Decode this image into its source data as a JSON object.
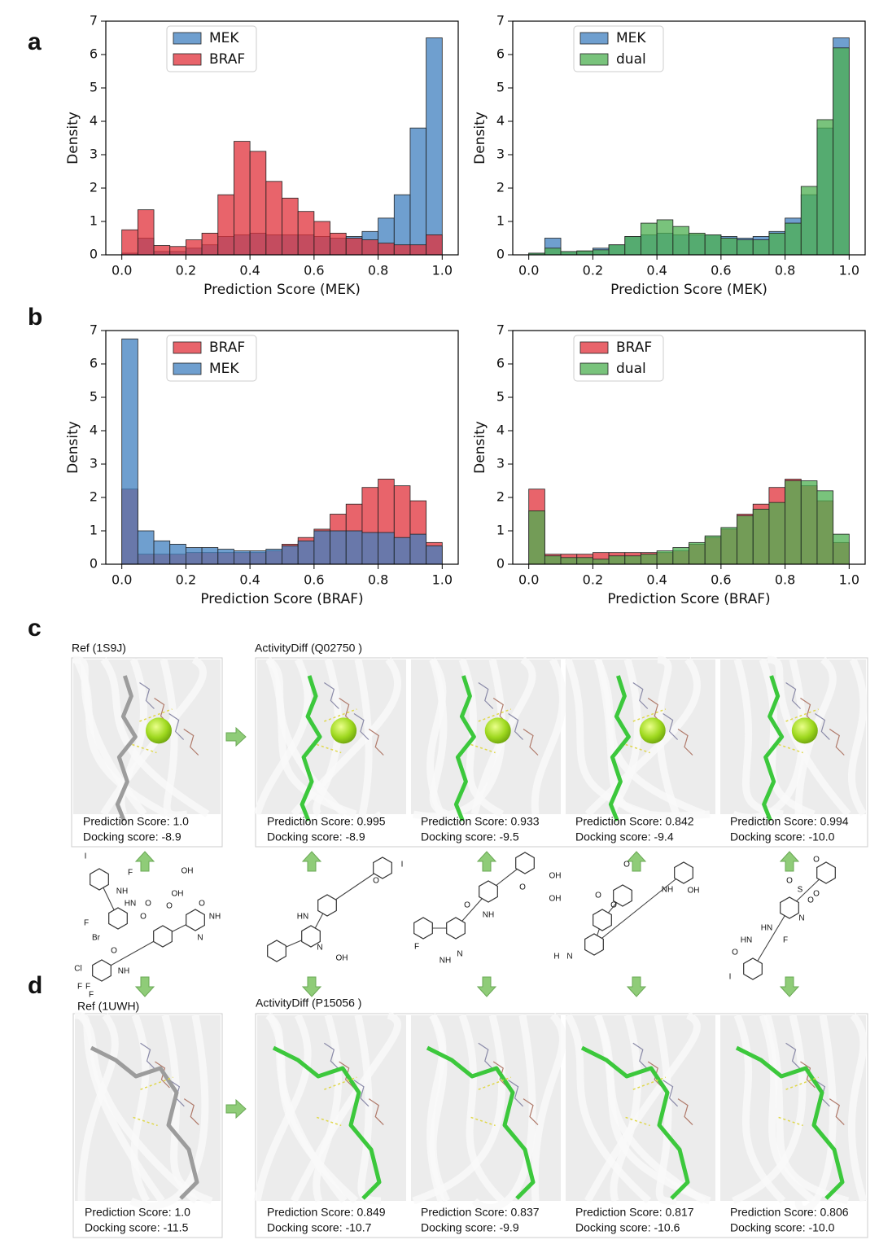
{
  "chart_data": [
    {
      "type": "histogram",
      "xlabel": "Prediction Score (MEK)",
      "ylabel": "Density",
      "bins": [
        0,
        0.05,
        0.1,
        0.15,
        0.2,
        0.25,
        0.3,
        0.35,
        0.4,
        0.45,
        0.5,
        0.55,
        0.6,
        0.65,
        0.7,
        0.75,
        0.8,
        0.85,
        0.9,
        0.95,
        1
      ],
      "series": [
        {
          "name": "MEK",
          "color": "#3f7fbf",
          "values": [
            0.05,
            0.5,
            0.1,
            0.1,
            0.2,
            0.3,
            0.55,
            0.6,
            0.65,
            0.6,
            0.6,
            0.6,
            0.55,
            0.5,
            0.55,
            0.7,
            1.1,
            1.8,
            3.8,
            6.5
          ]
        },
        {
          "name": "BRAF",
          "color": "#e0303a",
          "values": [
            0.75,
            1.35,
            0.28,
            0.25,
            0.45,
            0.65,
            1.8,
            3.4,
            3.1,
            2.2,
            1.7,
            1.3,
            1.0,
            0.65,
            0.5,
            0.45,
            0.35,
            0.3,
            0.3,
            0.6
          ]
        }
      ],
      "xlim": [
        -0.05,
        1.05
      ],
      "ylim": [
        0,
        7
      ],
      "xticks": [
        {
          "value": 0,
          "label": "0.0"
        },
        {
          "value": 0.2,
          "label": "0.2"
        },
        {
          "value": 0.4,
          "label": "0.4"
        },
        {
          "value": 0.6,
          "label": "0.6"
        },
        {
          "value": 0.8,
          "label": "0.8"
        },
        {
          "value": 1,
          "label": "1.0"
        }
      ],
      "yticks": [
        0,
        1,
        2,
        3,
        4,
        5,
        6,
        7
      ],
      "legend": "upper left"
    },
    {
      "type": "histogram",
      "xlabel": "Prediction Score (MEK)",
      "ylabel": "Density",
      "bins": [
        0,
        0.05,
        0.1,
        0.15,
        0.2,
        0.25,
        0.3,
        0.35,
        0.4,
        0.45,
        0.5,
        0.55,
        0.6,
        0.65,
        0.7,
        0.75,
        0.8,
        0.85,
        0.9,
        0.95,
        1
      ],
      "series": [
        {
          "name": "MEK",
          "color": "#3f7fbf",
          "values": [
            0.05,
            0.5,
            0.1,
            0.1,
            0.2,
            0.3,
            0.55,
            0.6,
            0.65,
            0.6,
            0.6,
            0.6,
            0.55,
            0.5,
            0.55,
            0.7,
            1.1,
            1.8,
            3.8,
            6.5
          ]
        },
        {
          "name": "dual",
          "color": "#4caf50",
          "values": [
            0.05,
            0.2,
            0.1,
            0.12,
            0.15,
            0.3,
            0.55,
            0.95,
            1.05,
            0.85,
            0.65,
            0.6,
            0.5,
            0.45,
            0.45,
            0.65,
            0.95,
            2.05,
            4.05,
            6.2
          ]
        }
      ],
      "xlim": [
        -0.05,
        1.05
      ],
      "ylim": [
        0,
        7
      ],
      "xticks": [
        {
          "value": 0,
          "label": "0.0"
        },
        {
          "value": 0.2,
          "label": "0.2"
        },
        {
          "value": 0.4,
          "label": "0.4"
        },
        {
          "value": 0.6,
          "label": "0.6"
        },
        {
          "value": 0.8,
          "label": "0.8"
        },
        {
          "value": 1,
          "label": "1.0"
        }
      ],
      "yticks": [
        0,
        1,
        2,
        3,
        4,
        5,
        6,
        7
      ],
      "legend": "upper left"
    },
    {
      "type": "histogram",
      "xlabel": "Prediction Score (BRAF)",
      "ylabel": "Density",
      "bins": [
        0,
        0.05,
        0.1,
        0.15,
        0.2,
        0.25,
        0.3,
        0.35,
        0.4,
        0.45,
        0.5,
        0.55,
        0.6,
        0.65,
        0.7,
        0.75,
        0.8,
        0.85,
        0.9,
        0.95,
        1
      ],
      "series": [
        {
          "name": "BRAF",
          "color": "#e0303a",
          "values": [
            2.25,
            0.3,
            0.3,
            0.3,
            0.35,
            0.35,
            0.35,
            0.35,
            0.35,
            0.4,
            0.6,
            0.8,
            1.05,
            1.5,
            1.8,
            2.3,
            2.55,
            2.35,
            1.9,
            0.65
          ]
        },
        {
          "name": "MEK",
          "color": "#3f7fbf",
          "values": [
            6.75,
            1.0,
            0.7,
            0.6,
            0.5,
            0.5,
            0.45,
            0.4,
            0.4,
            0.45,
            0.55,
            0.7,
            1.0,
            1.0,
            1.0,
            0.95,
            0.95,
            0.8,
            0.9,
            0.55
          ]
        }
      ],
      "xlim": [
        -0.05,
        1.05
      ],
      "ylim": [
        0,
        7
      ],
      "xticks": [
        {
          "value": 0,
          "label": "0.0"
        },
        {
          "value": 0.2,
          "label": "0.2"
        },
        {
          "value": 0.4,
          "label": "0.4"
        },
        {
          "value": 0.6,
          "label": "0.6"
        },
        {
          "value": 0.8,
          "label": "0.8"
        },
        {
          "value": 1,
          "label": "1.0"
        }
      ],
      "yticks": [
        0,
        1,
        2,
        3,
        4,
        5,
        6,
        7
      ],
      "legend": "upper left"
    },
    {
      "type": "histogram",
      "xlabel": "Prediction Score (BRAF)",
      "ylabel": "Density",
      "bins": [
        0,
        0.05,
        0.1,
        0.15,
        0.2,
        0.25,
        0.3,
        0.35,
        0.4,
        0.45,
        0.5,
        0.55,
        0.6,
        0.65,
        0.7,
        0.75,
        0.8,
        0.85,
        0.9,
        0.95,
        1
      ],
      "series": [
        {
          "name": "BRAF",
          "color": "#e0303a",
          "values": [
            2.25,
            0.3,
            0.3,
            0.3,
            0.35,
            0.35,
            0.35,
            0.35,
            0.35,
            0.4,
            0.6,
            0.8,
            1.05,
            1.5,
            1.8,
            2.3,
            2.55,
            2.35,
            1.9,
            0.65
          ]
        },
        {
          "name": "dual",
          "color": "#4caf50",
          "values": [
            1.6,
            0.25,
            0.2,
            0.2,
            0.15,
            0.25,
            0.25,
            0.3,
            0.4,
            0.5,
            0.65,
            0.85,
            1.1,
            1.45,
            1.65,
            1.85,
            2.5,
            2.5,
            2.2,
            0.9
          ]
        }
      ],
      "xlim": [
        -0.05,
        1.05
      ],
      "ylim": [
        0,
        7
      ],
      "xticks": [
        {
          "value": 0,
          "label": "0.0"
        },
        {
          "value": 0.2,
          "label": "0.2"
        },
        {
          "value": 0.4,
          "label": "0.4"
        },
        {
          "value": 0.6,
          "label": "0.6"
        },
        {
          "value": 0.8,
          "label": "0.8"
        },
        {
          "value": 1,
          "label": "1.0"
        }
      ],
      "yticks": [
        0,
        1,
        2,
        3,
        4,
        5,
        6,
        7
      ],
      "legend": "upper left"
    }
  ],
  "panel_labels": [
    "a",
    "b",
    "c",
    "d"
  ],
  "panel_c": {
    "ref_title": "Ref (1S9J)",
    "gen_title": "ActivityDiff (Q02750 )",
    "cards": [
      {
        "prediction": "Prediction Score: 1.0",
        "docking": "Docking score: -8.9"
      },
      {
        "prediction": "Prediction Score: 0.995",
        "docking": "Docking score: -8.9"
      },
      {
        "prediction": "Prediction Score: 0.933",
        "docking": "Docking score: -9.5"
      },
      {
        "prediction": "Prediction Score: 0.842",
        "docking": "Docking score: -9.4"
      },
      {
        "prediction": "Prediction Score: 0.994",
        "docking": "Docking score: -10.0"
      }
    ]
  },
  "panel_d": {
    "ref_title": "Ref (1UWH)",
    "gen_title": "ActivityDiff (P15056 )",
    "cards": [
      {
        "prediction": "Prediction Score: 1.0",
        "docking": "Docking score: -11.5"
      },
      {
        "prediction": "Prediction Score: 0.849",
        "docking": "Docking score: -10.7"
      },
      {
        "prediction": "Prediction Score: 0.837",
        "docking": "Docking score: -9.9"
      },
      {
        "prediction": "Prediction Score: 0.817",
        "docking": "Docking score: -10.6"
      },
      {
        "prediction": "Prediction Score: 0.806",
        "docking": "Docking score: -10.0"
      }
    ]
  },
  "molecules": [
    {
      "atoms": [
        "I",
        "F",
        "OH",
        "NH",
        "OH",
        "HN",
        "O",
        "F",
        "O",
        "Br"
      ]
    },
    {
      "atoms": [
        "O",
        "O",
        "NH",
        "N",
        "O",
        "Cl",
        "NH",
        "F",
        "F",
        "F"
      ]
    },
    {
      "atoms": [
        "O",
        "I",
        "HN",
        "N",
        "OH"
      ]
    },
    {
      "atoms": [
        "OH",
        "O",
        "OH",
        "O",
        "NH",
        "N",
        "F",
        "NH"
      ]
    },
    {
      "atoms": [
        "O",
        "NH",
        "OH",
        "O",
        "O",
        "H",
        "N"
      ]
    },
    {
      "atoms": [
        "O",
        "O",
        "O",
        "S",
        "O",
        "N",
        "HN",
        "F",
        "HN",
        "O",
        "I"
      ]
    }
  ]
}
